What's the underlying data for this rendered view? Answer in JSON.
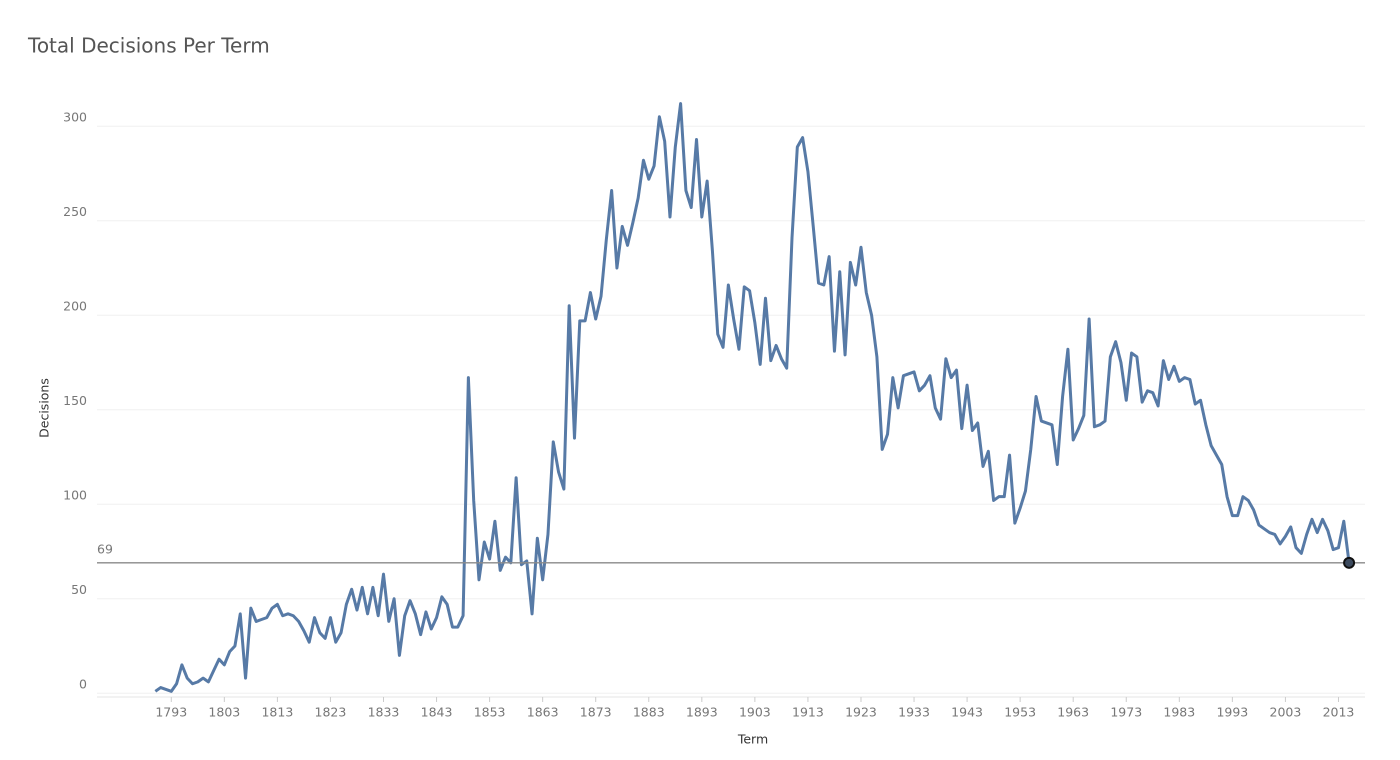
{
  "chart_data": {
    "type": "line",
    "title": "Total Decisions Per Term",
    "x_label": "Term",
    "y_label": "Decisions",
    "x": [
      1790,
      1791,
      1792,
      1793,
      1794,
      1795,
      1796,
      1797,
      1798,
      1799,
      1800,
      1801,
      1802,
      1803,
      1804,
      1805,
      1806,
      1807,
      1808,
      1809,
      1810,
      1811,
      1812,
      1813,
      1814,
      1815,
      1816,
      1817,
      1818,
      1819,
      1820,
      1821,
      1822,
      1823,
      1824,
      1825,
      1826,
      1827,
      1828,
      1829,
      1830,
      1831,
      1832,
      1833,
      1834,
      1835,
      1836,
      1837,
      1838,
      1839,
      1840,
      1841,
      1842,
      1843,
      1844,
      1845,
      1846,
      1847,
      1848,
      1849,
      1850,
      1851,
      1852,
      1853,
      1854,
      1855,
      1856,
      1857,
      1858,
      1859,
      1860,
      1861,
      1862,
      1863,
      1864,
      1865,
      1866,
      1867,
      1868,
      1869,
      1870,
      1871,
      1872,
      1873,
      1874,
      1875,
      1876,
      1877,
      1878,
      1879,
      1880,
      1881,
      1882,
      1883,
      1884,
      1885,
      1886,
      1887,
      1888,
      1889,
      1890,
      1891,
      1892,
      1893,
      1894,
      1895,
      1896,
      1897,
      1898,
      1899,
      1900,
      1901,
      1902,
      1903,
      1904,
      1905,
      1906,
      1907,
      1908,
      1909,
      1910,
      1911,
      1912,
      1913,
      1914,
      1915,
      1916,
      1917,
      1918,
      1919,
      1920,
      1921,
      1922,
      1923,
      1924,
      1925,
      1926,
      1927,
      1928,
      1929,
      1930,
      1931,
      1932,
      1933,
      1934,
      1935,
      1936,
      1937,
      1938,
      1939,
      1940,
      1941,
      1942,
      1943,
      1944,
      1945,
      1946,
      1947,
      1948,
      1949,
      1950,
      1951,
      1952,
      1953,
      1954,
      1955,
      1956,
      1957,
      1958,
      1959,
      1960,
      1961,
      1962,
      1963,
      1964,
      1965,
      1966,
      1967,
      1968,
      1969,
      1970,
      1971,
      1972,
      1973,
      1974,
      1975,
      1976,
      1977,
      1978,
      1979,
      1980,
      1981,
      1982,
      1983,
      1984,
      1985,
      1986,
      1987,
      1988,
      1989,
      1990,
      1991,
      1992,
      1993,
      1994,
      1995,
      1996,
      1997,
      1998,
      1999,
      2000,
      2001,
      2002,
      2003,
      2004,
      2005,
      2006,
      2007,
      2008,
      2009,
      2010,
      2011,
      2012,
      2013,
      2014,
      2015
    ],
    "values": [
      1,
      3,
      2,
      1,
      5,
      15,
      8,
      5,
      6,
      8,
      6,
      12,
      18,
      15,
      22,
      25,
      42,
      8,
      45,
      38,
      39,
      40,
      45,
      47,
      41,
      42,
      41,
      38,
      33,
      27,
      40,
      32,
      29,
      40,
      27,
      32,
      47,
      55,
      44,
      56,
      42,
      56,
      41,
      63,
      38,
      50,
      20,
      41,
      49,
      42,
      31,
      43,
      34,
      40,
      51,
      47,
      35,
      35,
      41,
      167,
      102,
      60,
      80,
      71,
      91,
      65,
      72,
      69,
      114,
      68,
      70,
      42,
      82,
      60,
      84,
      133,
      117,
      108,
      205,
      135,
      197,
      197,
      212,
      198,
      210,
      240,
      266,
      225,
      247,
      237,
      249,
      262,
      282,
      272,
      279,
      305,
      292,
      252,
      289,
      312,
      266,
      257,
      293,
      252,
      271,
      234,
      190,
      183,
      216,
      198,
      182,
      215,
      213,
      196,
      174,
      209,
      176,
      184,
      177,
      172,
      241,
      289,
      294,
      276,
      247,
      217,
      216,
      231,
      181,
      223,
      179,
      228,
      216,
      236,
      212,
      200,
      178,
      129,
      137,
      167,
      151,
      168,
      169,
      170,
      160,
      163,
      168,
      151,
      145,
      177,
      167,
      171,
      140,
      163,
      139,
      143,
      120,
      128,
      102,
      104,
      104,
      126,
      90,
      98,
      107,
      129,
      157,
      144,
      143,
      142,
      121,
      157,
      182,
      134,
      140,
      147,
      198,
      141,
      142,
      144,
      178,
      186,
      175,
      155,
      180,
      178,
      154,
      160,
      159,
      152,
      176,
      166,
      173,
      165,
      167,
      166,
      153,
      155,
      142,
      131,
      126,
      121,
      104,
      94,
      94,
      104,
      102,
      97,
      89,
      87,
      85,
      84,
      79,
      83,
      88,
      77,
      74,
      84,
      92,
      85,
      92,
      86,
      76,
      77,
      91,
      69
    ],
    "color": "#577aa6",
    "reference_line": 69,
    "end_marker": true,
    "xlim": [
      1779,
      2018
    ],
    "ylim": [
      -2,
      325
    ],
    "xticks": [
      1793,
      1803,
      1813,
      1823,
      1833,
      1843,
      1853,
      1863,
      1873,
      1883,
      1893,
      1903,
      1913,
      1923,
      1933,
      1943,
      1953,
      1963,
      1973,
      1983,
      1993,
      2003,
      2013
    ],
    "yticks": [
      0,
      50,
      100,
      150,
      200,
      250,
      300
    ],
    "grid": true
  }
}
